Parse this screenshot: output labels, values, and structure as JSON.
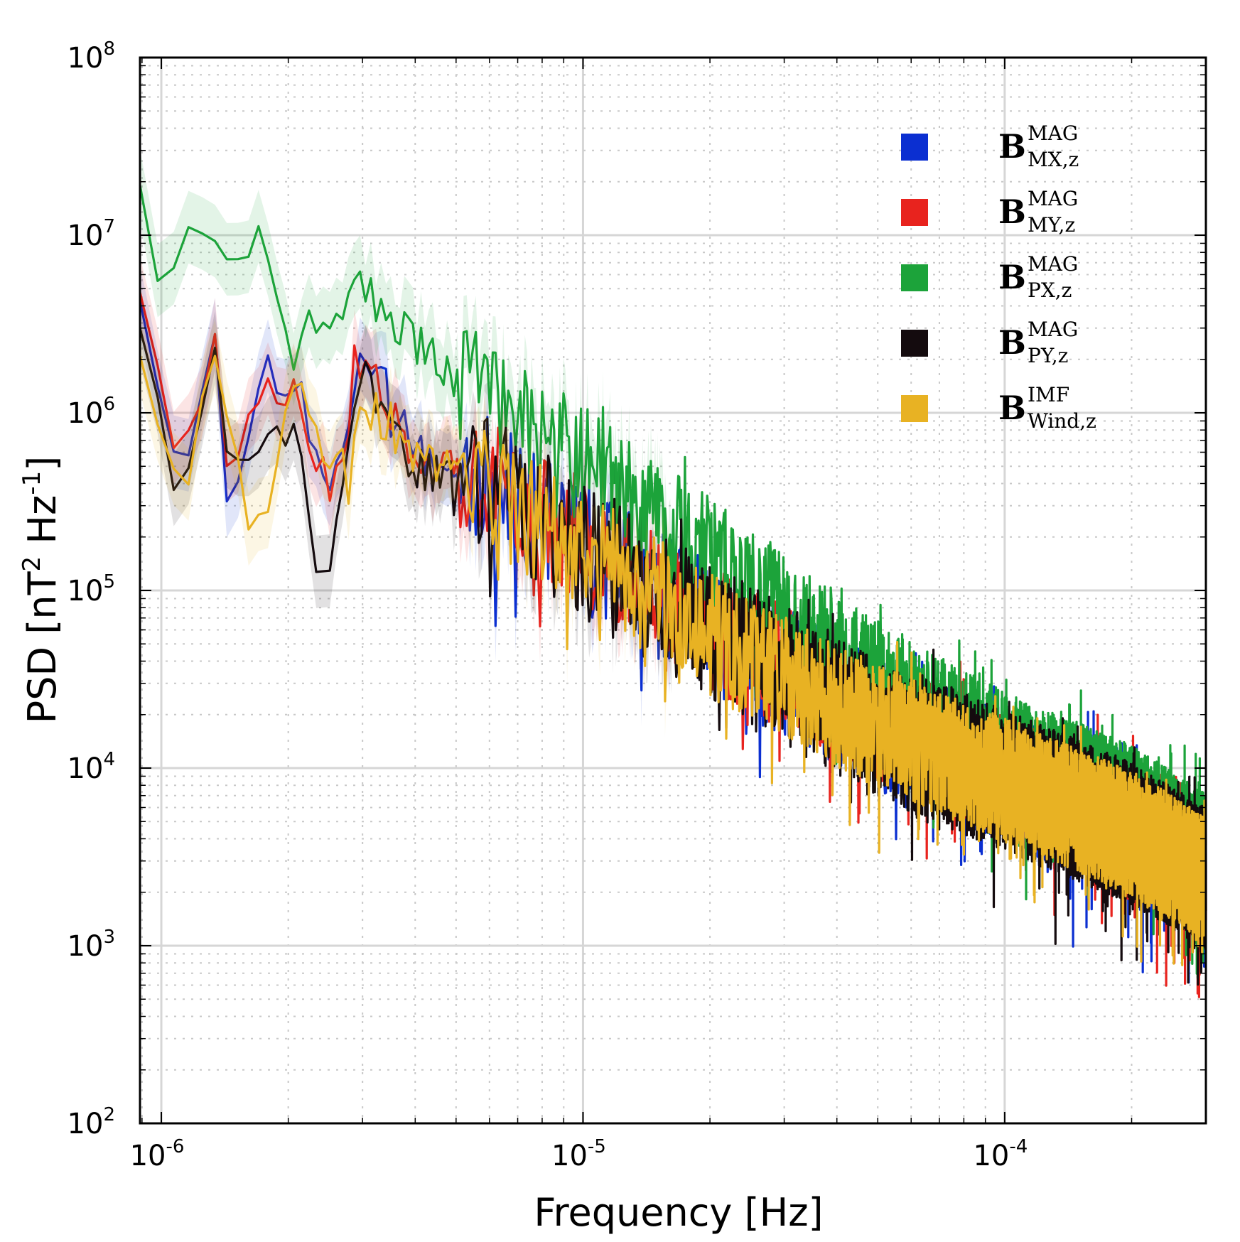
{
  "chart_data": {
    "type": "line",
    "title": "",
    "xlabel": "Frequency  [Hz]",
    "ylabel": {
      "base": "PSD  [nT",
      "sup1": "2",
      "mid": " Hz",
      "sup2": "-1",
      "end": "]"
    },
    "xscale": "log",
    "yscale": "log",
    "xlim": [
      8.9e-07,
      0.0003
    ],
    "ylim": [
      100,
      100000000
    ],
    "grid": true,
    "legend_position": "top-right",
    "x_ticks": [
      {
        "value": 1e-06,
        "base": "10",
        "exp": "-6"
      },
      {
        "value": 1e-05,
        "base": "10",
        "exp": "-5"
      },
      {
        "value": 0.0001,
        "base": "10",
        "exp": "-4"
      }
    ],
    "y_ticks": [
      {
        "value": 100,
        "base": "10",
        "exp": "2"
      },
      {
        "value": 1000,
        "base": "10",
        "exp": "3"
      },
      {
        "value": 10000,
        "base": "10",
        "exp": "4"
      },
      {
        "value": 100000,
        "base": "10",
        "exp": "5"
      },
      {
        "value": 1000000,
        "base": "10",
        "exp": "6"
      },
      {
        "value": 10000000,
        "base": "10",
        "exp": "7"
      },
      {
        "value": 100000000,
        "base": "10",
        "exp": "8"
      }
    ],
    "series": [
      {
        "name": "B_MX,z^MAG",
        "label": {
          "main": "B",
          "sup": "MAG",
          "sub": "MX,z"
        },
        "color": "#0b2fd1",
        "seed": 11,
        "noise": 0.75,
        "anchors": [
          [
            9e-07,
            5000000
          ],
          [
            1.05e-06,
            800000
          ],
          [
            1.2e-06,
            650000
          ],
          [
            1.32e-06,
            4200000
          ],
          [
            1.45e-06,
            180000
          ],
          [
            1.7e-06,
            1800000
          ],
          [
            2.1e-06,
            1600000
          ],
          [
            2.5e-06,
            300000
          ],
          [
            3e-06,
            2500000
          ],
          [
            4e-06,
            600000
          ],
          [
            6e-06,
            400000
          ],
          [
            1e-05,
            180000
          ],
          [
            2e-05,
            60000
          ],
          [
            5e-05,
            18000
          ],
          [
            0.0001,
            9000
          ],
          [
            0.0002,
            4500
          ],
          [
            0.0003,
            2500
          ]
        ]
      },
      {
        "name": "B_MY,z^MAG",
        "label": {
          "main": "B",
          "sup": "MAG",
          "sub": "MY,z"
        },
        "color": "#e8231e",
        "seed": 23,
        "noise": 0.7,
        "anchors": [
          [
            9e-07,
            5500000
          ],
          [
            1.05e-06,
            750000
          ],
          [
            1.2e-06,
            600000
          ],
          [
            1.32e-06,
            4800000
          ],
          [
            1.45e-06,
            400000
          ],
          [
            1.7e-06,
            1300000
          ],
          [
            2.1e-06,
            1200000
          ],
          [
            2.5e-06,
            350000
          ],
          [
            3e-06,
            2000000
          ],
          [
            4e-06,
            550000
          ],
          [
            6e-06,
            420000
          ],
          [
            1e-05,
            190000
          ],
          [
            2e-05,
            62000
          ],
          [
            5e-05,
            19000
          ],
          [
            0.0001,
            9500
          ],
          [
            0.0002,
            4800
          ],
          [
            0.0003,
            2600
          ]
        ]
      },
      {
        "name": "B_PX,z^MAG",
        "label": {
          "main": "B",
          "sup": "MAG",
          "sub": "PX,z"
        },
        "color": "#1ca33a",
        "seed": 37,
        "noise": 0.7,
        "anchors": [
          [
            9e-07,
            22000000
          ],
          [
            1e-06,
            5500000
          ],
          [
            1.15e-06,
            10000000
          ],
          [
            1.4e-06,
            7500000
          ],
          [
            1.7e-06,
            8500000
          ],
          [
            2e-06,
            2500000
          ],
          [
            3e-06,
            5000000
          ],
          [
            4e-06,
            2500000
          ],
          [
            6e-06,
            1100000
          ],
          [
            1e-05,
            500000
          ],
          [
            2e-05,
            150000
          ],
          [
            5e-05,
            30000
          ],
          [
            0.0001,
            12000
          ],
          [
            0.0002,
            6000
          ],
          [
            0.0003,
            3200
          ]
        ]
      },
      {
        "name": "B_PY,z^MAG",
        "label": {
          "main": "B",
          "sup": "MAG",
          "sub": "PY,z"
        },
        "color": "#140b0e",
        "seed": 53,
        "noise": 0.8,
        "anchors": [
          [
            9e-07,
            3500000
          ],
          [
            1.05e-06,
            450000
          ],
          [
            1.2e-06,
            450000
          ],
          [
            1.32e-06,
            3800000
          ],
          [
            1.45e-06,
            550000
          ],
          [
            1.7e-06,
            700000
          ],
          [
            2.1e-06,
            1000000
          ],
          [
            2.4e-06,
            100000
          ],
          [
            3e-06,
            1500000
          ],
          [
            4e-06,
            500000
          ],
          [
            6e-06,
            380000
          ],
          [
            1e-05,
            170000
          ],
          [
            2e-05,
            58000
          ],
          [
            5e-05,
            17000
          ],
          [
            0.0001,
            8500
          ],
          [
            0.0002,
            4300
          ],
          [
            0.0003,
            2400
          ]
        ]
      },
      {
        "name": "B_Wind,z^IMF",
        "label": {
          "main": "B",
          "sup": "IMF",
          "sub": "Wind,z"
        },
        "color": "#e8b223",
        "seed": 71,
        "noise": 0.7,
        "anchors": [
          [
            9e-07,
            2400000
          ],
          [
            1.1e-06,
            280000
          ],
          [
            1.32e-06,
            2400000
          ],
          [
            1.5e-06,
            500000
          ],
          [
            1.65e-06,
            150000
          ],
          [
            2.1e-06,
            2000000
          ],
          [
            2.5e-06,
            400000
          ],
          [
            3e-06,
            1200000
          ],
          [
            4e-06,
            550000
          ],
          [
            6e-06,
            380000
          ],
          [
            1e-05,
            170000
          ],
          [
            2e-05,
            56000
          ],
          [
            5e-05,
            17000
          ],
          [
            0.0001,
            8500
          ],
          [
            0.0002,
            4300
          ],
          [
            0.0003,
            2400
          ]
        ]
      }
    ]
  }
}
